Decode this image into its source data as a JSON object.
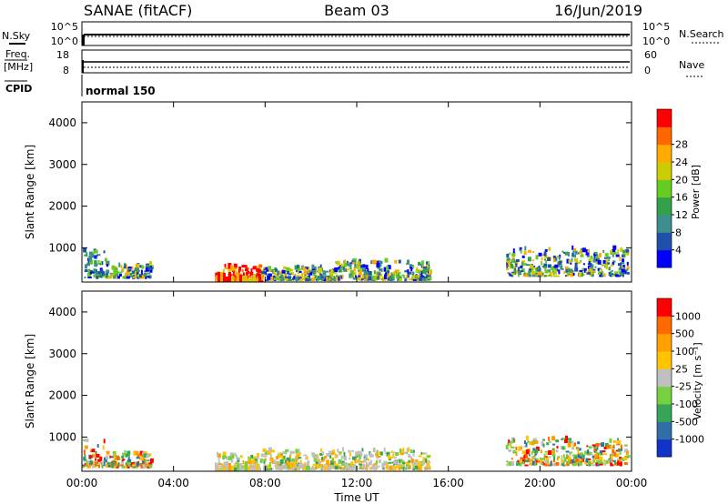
{
  "header": {
    "site": "SANAE (fitACF)",
    "beam": "Beam 03",
    "date": "16/Jun/2019"
  },
  "status": {
    "nsky_label": "N.Sky",
    "nsearch_label": "N.Search",
    "noise_ticks": [
      "10^5",
      "10^0"
    ],
    "freq_label_1": "Freq.",
    "freq_label_2": "[MHz]",
    "freq_ticks": [
      "18",
      "8"
    ],
    "nave_label": "Nave",
    "nave_ticks": [
      "60",
      "0"
    ],
    "cpid_label": "CPID",
    "cpid_value": "normal 150"
  },
  "chart_data": [
    {
      "type": "heatmap",
      "name": "power",
      "ylabel": "Slant Range [km]",
      "ylim": [
        180,
        4500
      ],
      "yticks": [
        "1000",
        "2000",
        "3000",
        "4000"
      ],
      "xlabel": "",
      "xticks": [
        "00:00",
        "04:00",
        "08:00",
        "12:00",
        "16:00",
        "20:00",
        "00:00"
      ],
      "xlim_hours": [
        0,
        24
      ],
      "colorbar": {
        "label": "Power [dB]",
        "tick_labels": [
          "4",
          "8",
          "12",
          "16",
          "20",
          "24",
          "28"
        ],
        "colors": [
          "#0000ff",
          "#1e50aa",
          "#3d8f8f",
          "#33a04a",
          "#66cc22",
          "#cccc00",
          "#ffaa00",
          "#ff6600",
          "#ff0000"
        ]
      },
      "features": [
        {
          "from_h": 0.0,
          "to_h": 1.0,
          "range_km": [
            250,
            900
          ],
          "level": "low"
        },
        {
          "from_h": 1.0,
          "to_h": 3.0,
          "range_km": [
            250,
            600
          ],
          "level": "mixed"
        },
        {
          "from_h": 5.8,
          "to_h": 7.8,
          "range_km": [
            180,
            550
          ],
          "level": "high"
        },
        {
          "from_h": 7.8,
          "to_h": 11.0,
          "range_km": [
            200,
            500
          ],
          "level": "mixed"
        },
        {
          "from_h": 11.0,
          "to_h": 15.2,
          "range_km": [
            200,
            650
          ],
          "level": "mixed"
        },
        {
          "from_h": 18.5,
          "to_h": 23.8,
          "range_km": [
            300,
            950
          ],
          "level": "mixed"
        }
      ]
    },
    {
      "type": "heatmap",
      "name": "velocity",
      "ylabel": "Slant Range [km]",
      "ylim": [
        180,
        4500
      ],
      "yticks": [
        "1000",
        "2000",
        "3000",
        "4000"
      ],
      "xlabel": "Time UT",
      "xticks": [
        "00:00",
        "04:00",
        "08:00",
        "12:00",
        "16:00",
        "20:00",
        "00:00"
      ],
      "xlim_hours": [
        0,
        24
      ],
      "colorbar": {
        "label": "Velocity [m s⁻¹]",
        "tick_labels": [
          "1000",
          "500",
          "100",
          "25",
          "-25",
          "-100",
          "-500",
          "-1000"
        ],
        "colors": [
          "#1034c8",
          "#2f6fa6",
          "#37a457",
          "#76d040",
          "#c0c0c0",
          "#ffc400",
          "#ffa000",
          "#ff6a00",
          "#ff0000"
        ]
      },
      "features": [
        {
          "from_h": 0.0,
          "to_h": 1.0,
          "range_km": [
            250,
            900
          ],
          "level": "mixed"
        },
        {
          "from_h": 1.0,
          "to_h": 3.0,
          "range_km": [
            250,
            600
          ],
          "level": "mixed"
        },
        {
          "from_h": 5.8,
          "to_h": 7.8,
          "range_km": [
            180,
            550
          ],
          "level": "slow"
        },
        {
          "from_h": 7.8,
          "to_h": 15.2,
          "range_km": [
            200,
            650
          ],
          "level": "slow"
        },
        {
          "from_h": 18.5,
          "to_h": 23.8,
          "range_km": [
            300,
            950
          ],
          "level": "mixed"
        }
      ]
    }
  ]
}
